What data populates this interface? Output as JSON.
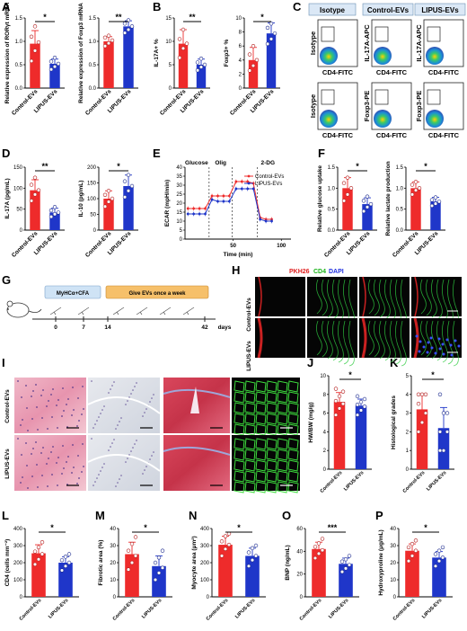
{
  "colors": {
    "red": "#ee2b2b",
    "blue": "#1f36c9",
    "flow_hdr": "#dbe8f6",
    "timeline_box1": "#cfe3f5",
    "timeline_box2": "#f6c06a"
  },
  "panels": {
    "A": "A",
    "B": "B",
    "C": "C",
    "D": "D",
    "E": "E",
    "F": "F",
    "G": "G",
    "H": "H",
    "I": "I",
    "J": "J",
    "K": "K",
    "L": "L",
    "M": "M",
    "N": "N",
    "O": "O",
    "P": "P"
  },
  "groups": {
    "control": "Control-EVs",
    "lipus": "LIPUS-EVs"
  },
  "flow": {
    "headers": [
      "Isotype",
      "Control-EVs",
      "LIPUS-EVs"
    ],
    "row1_ylabels": [
      "Isotype",
      "IL-17A-APC",
      "IL-17A-APC"
    ],
    "row2_ylabels": [
      "Isotype",
      "Foxp3-PE",
      "Foxp3-PE"
    ],
    "xlabel": "CD4-FITC"
  },
  "timeline": {
    "box1": "MyHCα+CFA",
    "box2": "Give EVs once a week",
    "ticks": [
      "0",
      "7",
      "14",
      "42"
    ],
    "unit": "days"
  },
  "H": {
    "stain_pkh": "PKH26",
    "stain_cd4": "CD4",
    "stain_dapi": "DAPI",
    "row1": "Control-EVs",
    "row2": "LIPUS-EVs"
  },
  "I": {
    "row1": "Control-EVs",
    "row2": "LIPUS-EVs"
  },
  "chart_data": [
    {
      "panel": "A",
      "type": "bar",
      "ylabel": "Relative expression of RORγt mRNA",
      "ylim": [
        0,
        1.5
      ],
      "yticks": [
        "0.0",
        "0.5",
        "1.0",
        "1.5"
      ],
      "categories": [
        "Control-EVs",
        "LIPUS-EVs"
      ],
      "values": [
        0.95,
        0.52
      ],
      "errors": [
        0.28,
        0.1
      ],
      "points": [
        [
          0.58,
          0.8,
          0.98,
          1.1,
          1.32
        ],
        [
          0.4,
          0.46,
          0.52,
          0.57,
          0.65
        ]
      ],
      "sig": "*"
    },
    {
      "panel": "A2",
      "type": "bar",
      "ylabel": "Relative expression of Foxp3 mRNA",
      "ylim": [
        0,
        1.5
      ],
      "yticks": [
        "0.0",
        "0.5",
        "1.0",
        "1.5"
      ],
      "categories": [
        "Control-EVs",
        "LIPUS-EVs"
      ],
      "values": [
        1.0,
        1.32
      ],
      "errors": [
        0.1,
        0.12
      ],
      "points": [
        [
          0.9,
          0.96,
          1.02,
          1.08,
          1.12
        ],
        [
          1.18,
          1.25,
          1.32,
          1.38,
          1.45
        ]
      ],
      "sig": "**"
    },
    {
      "panel": "B",
      "type": "bar",
      "ylabel": "IL-17A+ %",
      "ylim": [
        0,
        15
      ],
      "yticks": [
        "0",
        "5",
        "10",
        "15"
      ],
      "categories": [
        "Control-EVs",
        "LIPUS-EVs"
      ],
      "values": [
        9.5,
        5.0
      ],
      "errors": [
        3.0,
        1.2
      ],
      "points": [
        [
          6.5,
          8.5,
          9.5,
          10.5,
          12.5
        ],
        [
          3.8,
          4.5,
          5.0,
          5.5,
          6.3
        ]
      ],
      "sig": "**"
    },
    {
      "panel": "B2",
      "type": "bar",
      "ylabel": "Foxp3+ %",
      "ylim": [
        0,
        10
      ],
      "yticks": [
        "0",
        "2",
        "4",
        "6",
        "8",
        "10"
      ],
      "categories": [
        "Control-EVs",
        "LIPUS-EVs"
      ],
      "values": [
        4.0,
        7.8
      ],
      "errors": [
        1.8,
        1.5
      ],
      "points": [
        [
          2.5,
          3.2,
          4.0,
          4.8,
          6.0
        ],
        [
          6.3,
          7.0,
          7.8,
          8.6,
          9.2
        ]
      ],
      "sig": "*"
    },
    {
      "panel": "D",
      "type": "bar",
      "ylabel": "IL-17A (pg/mL)",
      "ylim": [
        0,
        150
      ],
      "yticks": [
        "0",
        "50",
        "100",
        "150"
      ],
      "categories": [
        "Control-EVs",
        "LIPUS-EVs"
      ],
      "values": [
        95,
        42
      ],
      "errors": [
        25,
        10
      ],
      "points": [
        [
          70,
          85,
          95,
          108,
          125
        ],
        [
          32,
          38,
          42,
          47,
          55
        ]
      ],
      "sig": "**"
    },
    {
      "panel": "D2",
      "type": "bar",
      "ylabel": "IL-10 (pg/mL)",
      "ylim": [
        0,
        200
      ],
      "yticks": [
        "0",
        "50",
        "100",
        "150",
        "200"
      ],
      "categories": [
        "Control-EVs",
        "LIPUS-EVs"
      ],
      "values": [
        100,
        140
      ],
      "errors": [
        25,
        35
      ],
      "points": [
        [
          75,
          90,
          100,
          112,
          125
        ],
        [
          105,
          125,
          140,
          155,
          175
        ]
      ],
      "sig": "*"
    },
    {
      "panel": "E",
      "type": "line",
      "ylabel": "ECAR (mpH/min)",
      "xlabel": "Time (min)",
      "xlim": [
        0,
        110
      ],
      "ylim": [
        0,
        40
      ],
      "yticks": [
        "0",
        "5",
        "10",
        "15",
        "20",
        "25",
        "30",
        "35",
        "40"
      ],
      "xticks": [
        "50",
        "100"
      ],
      "annotations": [
        "Glucose",
        "Olig",
        "2-DG"
      ],
      "series": [
        {
          "name": "Control-EVs",
          "x": [
            3,
            9,
            15,
            21,
            28,
            34,
            40,
            46,
            53,
            59,
            65,
            71,
            78,
            84,
            90
          ],
          "y": [
            17,
            17,
            17,
            17,
            24,
            24,
            24,
            24,
            32,
            32,
            32,
            31,
            12,
            11,
            11
          ]
        },
        {
          "name": "LIPUS-EVs",
          "x": [
            3,
            9,
            15,
            21,
            28,
            34,
            40,
            46,
            53,
            59,
            65,
            71,
            78,
            84,
            90
          ],
          "y": [
            14,
            14,
            14,
            14,
            22,
            21,
            21,
            21,
            28,
            28,
            28,
            28,
            11,
            10,
            10
          ]
        }
      ]
    },
    {
      "panel": "F",
      "type": "bar",
      "ylabel": "Relative glucose uptake",
      "ylim": [
        0,
        1.5
      ],
      "yticks": [
        "0.0",
        "0.5",
        "1.0",
        "1.5"
      ],
      "categories": [
        "Control-EVs",
        "LIPUS-EVs"
      ],
      "values": [
        1.0,
        0.62
      ],
      "errors": [
        0.25,
        0.15
      ],
      "points": [
        [
          0.7,
          0.85,
          1.0,
          1.12,
          1.25
        ],
        [
          0.45,
          0.55,
          0.62,
          0.7,
          0.8
        ]
      ],
      "sig": "*"
    },
    {
      "panel": "F2",
      "type": "bar",
      "ylabel": "Relative lactate production",
      "ylim": [
        0,
        1.5
      ],
      "yticks": [
        "0.0",
        "0.5",
        "1.0",
        "1.5"
      ],
      "categories": [
        "Control-EVs",
        "LIPUS-EVs"
      ],
      "values": [
        1.0,
        0.68
      ],
      "errors": [
        0.15,
        0.1
      ],
      "points": [
        [
          0.85,
          0.95,
          1.0,
          1.08,
          1.15
        ],
        [
          0.58,
          0.63,
          0.68,
          0.72,
          0.78
        ]
      ],
      "sig": "*"
    },
    {
      "panel": "J",
      "type": "bar",
      "ylabel": "HW/BW (mg/g)",
      "ylim": [
        0,
        10
      ],
      "yticks": [
        "0",
        "2",
        "4",
        "6",
        "8",
        "10"
      ],
      "categories": [
        "Control-EVs",
        "LIPUS-EVs"
      ],
      "values": [
        7.2,
        6.8
      ],
      "errors": [
        1.0,
        0.7
      ],
      "points": [
        [
          5.8,
          6.5,
          7.0,
          7.3,
          7.8,
          8.3,
          8.6
        ],
        [
          5.8,
          6.3,
          6.7,
          6.9,
          7.2,
          7.5,
          7.8
        ]
      ],
      "sig": "*"
    },
    {
      "panel": "K",
      "type": "bar",
      "ylabel": "Histological grades",
      "ylim": [
        0,
        5
      ],
      "yticks": [
        "0",
        "1",
        "2",
        "3",
        "4",
        "5"
      ],
      "categories": [
        "Control-EVs",
        "LIPUS-EVs"
      ],
      "values": [
        3.2,
        2.2
      ],
      "errors": [
        0.8,
        1.1
      ],
      "points": [
        [
          2,
          2.5,
          3,
          3.5,
          4,
          4,
          4
        ],
        [
          1,
          1,
          2,
          2,
          3,
          3,
          4
        ]
      ],
      "sig": "*"
    },
    {
      "panel": "L",
      "type": "bar",
      "ylabel": "CD4 (cells mm⁻²)",
      "ylim": [
        0,
        400
      ],
      "yticks": [
        "0",
        "100",
        "200",
        "300",
        "400"
      ],
      "categories": [
        "Control-EVs",
        "LIPUS-EVs"
      ],
      "values": [
        255,
        200
      ],
      "errors": [
        50,
        35
      ],
      "points": [
        [
          190,
          220,
          250,
          265,
          290,
          320
        ],
        [
          155,
          180,
          200,
          215,
          235,
          250
        ]
      ],
      "sig": "*"
    },
    {
      "panel": "M",
      "type": "bar",
      "ylabel": "Fibrotic area (%)",
      "ylim": [
        0,
        40
      ],
      "yticks": [
        "0",
        "10",
        "20",
        "30",
        "40"
      ],
      "categories": [
        "Control-EVs",
        "LIPUS-EVs"
      ],
      "values": [
        25,
        18
      ],
      "errors": [
        7,
        6
      ],
      "points": [
        [
          16,
          20,
          24,
          27,
          31,
          35
        ],
        [
          10,
          14,
          17,
          20,
          23,
          27
        ]
      ],
      "sig": "*"
    },
    {
      "panel": "N",
      "type": "bar",
      "ylabel": "Myocyte area (μm²)",
      "ylim": [
        0,
        400
      ],
      "yticks": [
        "0",
        "100",
        "200",
        "300",
        "400"
      ],
      "categories": [
        "Control-EVs",
        "LIPUS-EVs"
      ],
      "values": [
        305,
        240
      ],
      "errors": [
        50,
        45
      ],
      "points": [
        [
          240,
          280,
          305,
          325,
          355,
          370
        ],
        [
          180,
          215,
          240,
          260,
          285,
          300
        ]
      ],
      "sig": "*"
    },
    {
      "panel": "O",
      "type": "bar",
      "ylabel": "BNP (ng/mL)",
      "ylim": [
        0,
        60
      ],
      "yticks": [
        "0",
        "20",
        "40",
        "60"
      ],
      "categories": [
        "Control-EVs",
        "LIPUS-EVs"
      ],
      "values": [
        42,
        29
      ],
      "errors": [
        6,
        5
      ],
      "points": [
        [
          34,
          38,
          41,
          44,
          47,
          51
        ],
        [
          22,
          25,
          28,
          31,
          33,
          36
        ]
      ],
      "sig": "***"
    },
    {
      "panel": "P",
      "type": "bar",
      "ylabel": "Hydroxyproline (μg/mL)",
      "ylim": [
        0,
        40
      ],
      "yticks": [
        "0",
        "10",
        "20",
        "30",
        "40"
      ],
      "categories": [
        "Control-EVs",
        "LIPUS-EVs"
      ],
      "values": [
        27,
        23
      ],
      "errors": [
        4,
        3.5
      ],
      "points": [
        [
          21,
          24,
          27,
          29,
          31,
          33
        ],
        [
          18,
          21,
          23,
          25,
          27,
          29
        ]
      ],
      "sig": "*"
    }
  ]
}
